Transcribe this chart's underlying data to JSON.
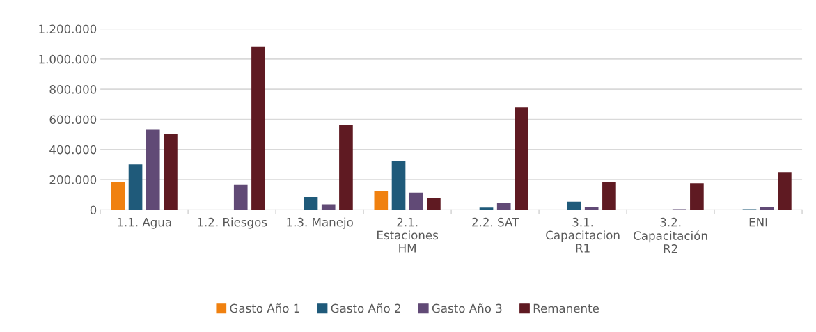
{
  "chart_data": {
    "type": "bar",
    "categories": [
      "1.1. Agua",
      "1.2. Riesgos",
      "1.3. Manejo",
      "2.1.\nEstaciones\nHM",
      "2.2. SAT",
      "3.1.\nCapacitacion\nR1",
      "3.2.\nCapacitación\nR2",
      "ENI"
    ],
    "series": [
      {
        "name": "Gasto Año 1",
        "color": "#f08110",
        "values": [
          185000,
          null,
          null,
          124000,
          null,
          null,
          null,
          null
        ]
      },
      {
        "name": "Gasto Año 2",
        "color": "#1f5a7a",
        "values": [
          301000,
          null,
          85000,
          324000,
          15000,
          54000,
          null,
          5000
        ]
      },
      {
        "name": "Gasto Año 3",
        "color": "#614a76",
        "values": [
          531000,
          165000,
          37000,
          114000,
          45000,
          19000,
          5000,
          18000
        ]
      },
      {
        "name": "Remanente",
        "color": "#5f1a22",
        "values": [
          505000,
          1084000,
          565000,
          77000,
          680000,
          187000,
          176000,
          250000
        ]
      }
    ],
    "ylim": [
      0,
      1200000
    ],
    "yticks": [
      0,
      {
        "value": 200000,
        "label": "200.000"
      },
      {
        "value": 400000,
        "label": "400.000"
      },
      {
        "value": 600000,
        "label": "600.000"
      },
      {
        "value": 800000,
        "label": "800.000"
      },
      {
        "value": 1000000,
        "label": "1.000.000"
      },
      {
        "value": 1200000,
        "label": "1.200.000"
      }
    ],
    "grid": "y",
    "legend": "bottom"
  }
}
